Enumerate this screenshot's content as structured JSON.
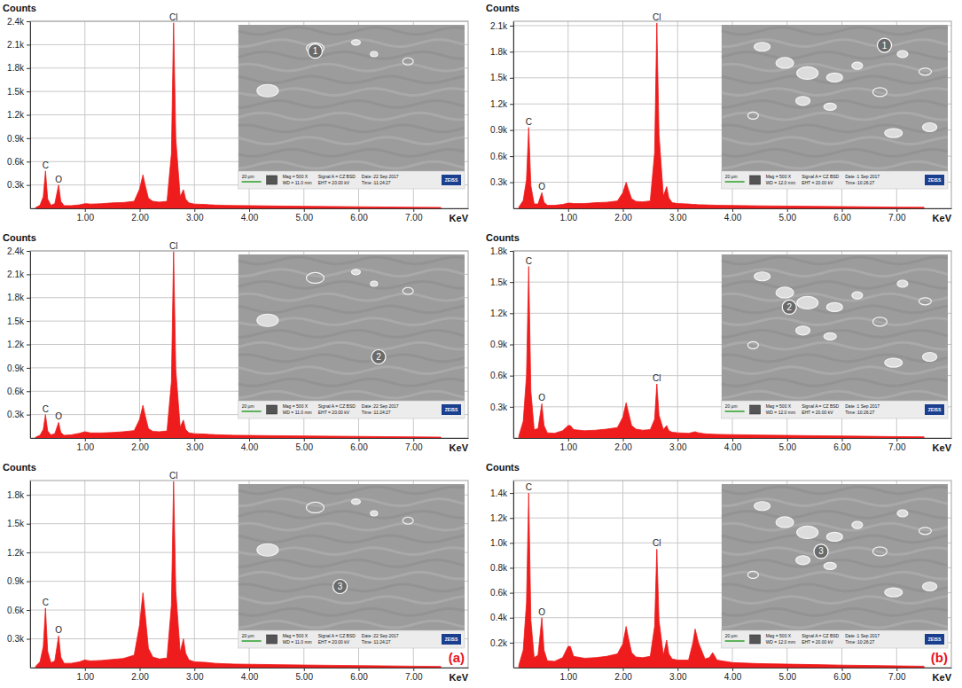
{
  "chart_data": [
    {
      "type": "area",
      "y_label": "Counts",
      "x_label": "KeV",
      "color": "#ee1c1c",
      "grid": true,
      "xlim": [
        0,
        8
      ],
      "xticks": [
        {
          "value": 1,
          "label": "1.00"
        },
        {
          "value": 2,
          "label": "2.00"
        },
        {
          "value": 3,
          "label": "3.00"
        },
        {
          "value": 4,
          "label": "4.00"
        },
        {
          "value": 5,
          "label": "5.00"
        },
        {
          "value": 6,
          "label": "6.00"
        },
        {
          "value": 7,
          "label": "7.00"
        }
      ],
      "ylim": [
        0,
        2400
      ],
      "yticks": [
        {
          "value": 300,
          "label": "0.3k"
        },
        {
          "value": 600,
          "label": "0.6k"
        },
        {
          "value": 900,
          "label": "0.9k"
        },
        {
          "value": 1200,
          "label": "1.2k"
        },
        {
          "value": 1500,
          "label": "1.5k"
        },
        {
          "value": 1800,
          "label": "1.8k"
        },
        {
          "value": 2100,
          "label": "2.1k"
        },
        {
          "value": 2400,
          "label": "2.4k"
        }
      ],
      "x": [
        0.1,
        0.18,
        0.24,
        0.28,
        0.32,
        0.38,
        0.45,
        0.52,
        0.56,
        0.62,
        0.75,
        0.9,
        1.0,
        1.04,
        1.1,
        1.3,
        1.5,
        1.7,
        1.9,
        2.0,
        2.06,
        2.1,
        2.16,
        2.24,
        2.36,
        2.5,
        2.58,
        2.62,
        2.66,
        2.74,
        2.8,
        2.84,
        2.9,
        3.0,
        3.2,
        3.28,
        3.32,
        3.38,
        3.5,
        3.58,
        3.64,
        3.72,
        4.0,
        4.5,
        5.0,
        5.5,
        6.0,
        6.5,
        7.0,
        7.5
      ],
      "values": [
        10,
        40,
        150,
        480,
        120,
        40,
        60,
        300,
        90,
        35,
        35,
        45,
        60,
        60,
        55,
        60,
        70,
        75,
        90,
        250,
        430,
        300,
        130,
        90,
        80,
        90,
        700,
        2380,
        900,
        150,
        240,
        120,
        70,
        55,
        50,
        45,
        45,
        42,
        40,
        38,
        38,
        36,
        35,
        30,
        27,
        24,
        20,
        17,
        14,
        12
      ],
      "annotations": [
        {
          "text": "C",
          "x": 0.28
        },
        {
          "text": "O",
          "x": 0.52
        },
        {
          "text": "Cl",
          "x": 2.62
        }
      ],
      "inset": {
        "spot": "1",
        "scale_bar": "20 µm",
        "info": [
          [
            "Mag =  500 X",
            "WD = 11.0 mm"
          ],
          [
            "Signal A = CZ BSD",
            "EHT = 20.00 kV"
          ],
          [
            "Date :22 Sep 2017",
            "Time :11:24:27"
          ]
        ],
        "brand": "ZEISS"
      }
    },
    {
      "type": "area",
      "y_label": "Counts",
      "x_label": "KeV",
      "color": "#ee1c1c",
      "grid": true,
      "xlim": [
        0,
        8
      ],
      "xticks": [
        {
          "value": 1,
          "label": "1.00"
        },
        {
          "value": 2,
          "label": "2.00"
        },
        {
          "value": 3,
          "label": "3.00"
        },
        {
          "value": 4,
          "label": "4.00"
        },
        {
          "value": 5,
          "label": "5.00"
        },
        {
          "value": 6,
          "label": "6.00"
        },
        {
          "value": 7,
          "label": "7.00"
        }
      ],
      "ylim": [
        0,
        2400
      ],
      "yticks": [
        {
          "value": 300,
          "label": "0.3k"
        },
        {
          "value": 600,
          "label": "0.6k"
        },
        {
          "value": 900,
          "label": "0.9k"
        },
        {
          "value": 1200,
          "label": "1.2k"
        },
        {
          "value": 1500,
          "label": "1.5k"
        },
        {
          "value": 1800,
          "label": "1.8k"
        },
        {
          "value": 2100,
          "label": "2.1k"
        },
        {
          "value": 2400,
          "label": "2.4k"
        }
      ],
      "x": [
        0.1,
        0.18,
        0.24,
        0.28,
        0.32,
        0.38,
        0.45,
        0.52,
        0.56,
        0.62,
        0.75,
        0.9,
        1.0,
        1.04,
        1.1,
        1.3,
        1.5,
        1.7,
        1.9,
        2.0,
        2.06,
        2.1,
        2.16,
        2.24,
        2.36,
        2.5,
        2.58,
        2.62,
        2.66,
        2.74,
        2.8,
        2.84,
        2.9,
        3.0,
        3.2,
        3.28,
        3.32,
        3.38,
        3.5,
        3.58,
        3.64,
        3.72,
        4.0,
        4.5,
        5.0,
        5.5,
        6.0,
        6.5,
        7.0,
        7.5
      ],
      "values": [
        10,
        35,
        110,
        300,
        90,
        40,
        55,
        200,
        70,
        35,
        40,
        60,
        80,
        75,
        65,
        65,
        70,
        80,
        95,
        240,
        420,
        290,
        120,
        85,
        80,
        90,
        720,
        2390,
        880,
        140,
        230,
        110,
        65,
        55,
        50,
        45,
        45,
        42,
        40,
        38,
        37,
        35,
        33,
        29,
        26,
        23,
        20,
        17,
        14,
        11
      ],
      "annotations": [
        {
          "text": "C",
          "x": 0.28
        },
        {
          "text": "O",
          "x": 0.52
        },
        {
          "text": "Cl",
          "x": 2.62
        }
      ],
      "inset": {
        "spot": "2",
        "scale_bar": "20 µm",
        "info": [
          [
            "Mag =  500 X",
            "WD = 11.0 mm"
          ],
          [
            "Signal A = CZ BSD",
            "EHT = 20.00 kV"
          ],
          [
            "Date :22 Sep 2017",
            "Time :11:24:27"
          ]
        ],
        "brand": "ZEISS"
      }
    },
    {
      "type": "area",
      "y_label": "Counts",
      "x_label": "KeV",
      "color": "#ee1c1c",
      "grid": true,
      "panel_label": "(a)",
      "xlim": [
        0,
        8
      ],
      "xticks": [
        {
          "value": 1,
          "label": "1.00"
        },
        {
          "value": 2,
          "label": "2.00"
        },
        {
          "value": 3,
          "label": "3.00"
        },
        {
          "value": 4,
          "label": "4.00"
        },
        {
          "value": 5,
          "label": "5.00"
        },
        {
          "value": 6,
          "label": "6.00"
        },
        {
          "value": 7,
          "label": "7.00"
        }
      ],
      "ylim": [
        0,
        1950
      ],
      "yticks": [
        {
          "value": 300,
          "label": "0.3k"
        },
        {
          "value": 600,
          "label": "0.6k"
        },
        {
          "value": 900,
          "label": "0.9k"
        },
        {
          "value": 1200,
          "label": "1.2k"
        },
        {
          "value": 1500,
          "label": "1.5k"
        },
        {
          "value": 1800,
          "label": "1.8k"
        }
      ],
      "x": [
        0.1,
        0.18,
        0.24,
        0.28,
        0.32,
        0.38,
        0.45,
        0.52,
        0.56,
        0.62,
        0.75,
        0.9,
        1.0,
        1.04,
        1.1,
        1.3,
        1.5,
        1.7,
        1.9,
        2.0,
        2.06,
        2.1,
        2.16,
        2.24,
        2.36,
        2.5,
        2.58,
        2.62,
        2.66,
        2.74,
        2.8,
        2.84,
        2.9,
        3.0,
        3.2,
        3.28,
        3.32,
        3.38,
        3.5,
        3.58,
        3.64,
        3.72,
        4.0,
        4.5,
        5.0,
        5.5,
        6.0,
        6.5,
        7.0,
        7.5
      ],
      "values": [
        15,
        60,
        220,
        620,
        170,
        50,
        70,
        330,
        110,
        45,
        45,
        60,
        80,
        75,
        70,
        75,
        85,
        95,
        130,
        450,
        780,
        560,
        200,
        110,
        90,
        100,
        650,
        1940,
        800,
        160,
        300,
        150,
        80,
        60,
        55,
        50,
        48,
        45,
        42,
        40,
        39,
        37,
        35,
        31,
        27,
        24,
        21,
        18,
        15,
        12
      ],
      "annotations": [
        {
          "text": "C",
          "x": 0.28
        },
        {
          "text": "O",
          "x": 0.52
        },
        {
          "text": "Cl",
          "x": 2.62
        }
      ],
      "inset": {
        "spot": "3",
        "scale_bar": "20 µm",
        "info": [
          [
            "Mag =  500 X",
            "WD = 11.0 mm"
          ],
          [
            "Signal A = CZ BSD",
            "EHT = 20.00 kV"
          ],
          [
            "Date :22 Sep 2017",
            "Time :11:24:27"
          ]
        ],
        "brand": "ZEISS"
      }
    },
    {
      "type": "area",
      "y_label": "Counts",
      "x_label": "KeV",
      "color": "#ee1c1c",
      "grid": true,
      "xlim": [
        0,
        8
      ],
      "xticks": [
        {
          "value": 1,
          "label": "1.00"
        },
        {
          "value": 2,
          "label": "2.00"
        },
        {
          "value": 3,
          "label": "3.00"
        },
        {
          "value": 4,
          "label": "4.00"
        },
        {
          "value": 5,
          "label": "5.00"
        },
        {
          "value": 6,
          "label": "6.00"
        },
        {
          "value": 7,
          "label": "7.00"
        }
      ],
      "ylim": [
        0,
        2150
      ],
      "yticks": [
        {
          "value": 300,
          "label": "0.3k"
        },
        {
          "value": 600,
          "label": "0.6k"
        },
        {
          "value": 900,
          "label": "0.9k"
        },
        {
          "value": 1200,
          "label": "1.2k"
        },
        {
          "value": 1500,
          "label": "1.5k"
        },
        {
          "value": 1800,
          "label": "1.8k"
        },
        {
          "value": 2100,
          "label": "2.1k"
        }
      ],
      "x": [
        0.1,
        0.18,
        0.24,
        0.28,
        0.32,
        0.38,
        0.45,
        0.52,
        0.56,
        0.62,
        0.75,
        0.9,
        1.0,
        1.04,
        1.1,
        1.3,
        1.5,
        1.7,
        1.9,
        2.0,
        2.06,
        2.1,
        2.16,
        2.24,
        2.36,
        2.5,
        2.58,
        2.62,
        2.66,
        2.74,
        2.8,
        2.84,
        2.9,
        3.0,
        3.2,
        3.28,
        3.32,
        3.38,
        3.5,
        3.58,
        3.64,
        3.72,
        4.0,
        4.5,
        5.0,
        5.5,
        6.0,
        6.5,
        7.0,
        7.5
      ],
      "values": [
        15,
        90,
        330,
        930,
        260,
        50,
        50,
        180,
        70,
        35,
        35,
        45,
        60,
        60,
        55,
        55,
        65,
        70,
        85,
        180,
        300,
        220,
        110,
        80,
        75,
        85,
        640,
        2130,
        850,
        140,
        250,
        120,
        65,
        55,
        50,
        45,
        45,
        42,
        40,
        38,
        37,
        35,
        33,
        29,
        26,
        23,
        20,
        17,
        14,
        12
      ],
      "annotations": [
        {
          "text": "C",
          "x": 0.28
        },
        {
          "text": "O",
          "x": 0.52
        },
        {
          "text": "Cl",
          "x": 2.62
        }
      ],
      "inset": {
        "spot": "1",
        "scale_bar": "20 µm",
        "info": [
          [
            "Mag =  500 X",
            "WD = 12.0 mm"
          ],
          [
            "Signal A = CZ BSD",
            "EHT = 20.00 kV"
          ],
          [
            "Date :1 Sep 2017",
            "Time :10:26:27"
          ]
        ],
        "brand": "ZEISS"
      }
    },
    {
      "type": "area",
      "y_label": "Counts",
      "x_label": "KeV",
      "color": "#ee1c1c",
      "grid": true,
      "xlim": [
        0,
        8
      ],
      "xticks": [
        {
          "value": 1,
          "label": "1.00"
        },
        {
          "value": 2,
          "label": "2.00"
        },
        {
          "value": 3,
          "label": "3.00"
        },
        {
          "value": 4,
          "label": "4.00"
        },
        {
          "value": 5,
          "label": "5.00"
        },
        {
          "value": 6,
          "label": "6.00"
        },
        {
          "value": 7,
          "label": "7.00"
        }
      ],
      "ylim": [
        0,
        1800
      ],
      "yticks": [
        {
          "value": 300,
          "label": "0.3k"
        },
        {
          "value": 600,
          "label": "0.6k"
        },
        {
          "value": 900,
          "label": "0.9k"
        },
        {
          "value": 1200,
          "label": "1.2k"
        },
        {
          "value": 1500,
          "label": "1.5k"
        },
        {
          "value": 1800,
          "label": "1.8k"
        }
      ],
      "x": [
        0.1,
        0.18,
        0.24,
        0.28,
        0.32,
        0.38,
        0.45,
        0.52,
        0.56,
        0.62,
        0.75,
        0.9,
        1.0,
        1.04,
        1.1,
        1.3,
        1.5,
        1.7,
        1.9,
        2.0,
        2.06,
        2.1,
        2.16,
        2.24,
        2.36,
        2.5,
        2.58,
        2.62,
        2.66,
        2.74,
        2.8,
        2.84,
        2.9,
        3.0,
        3.2,
        3.28,
        3.32,
        3.38,
        3.5,
        3.58,
        3.64,
        3.72,
        4.0,
        4.5,
        5.0,
        5.5,
        6.0,
        6.5,
        7.0,
        7.5
      ],
      "values": [
        20,
        160,
        600,
        1650,
        450,
        80,
        90,
        330,
        120,
        50,
        45,
        70,
        120,
        120,
        80,
        70,
        75,
        85,
        100,
        200,
        340,
        250,
        120,
        85,
        75,
        80,
        180,
        520,
        220,
        80,
        120,
        70,
        55,
        50,
        45,
        55,
        60,
        50,
        40,
        38,
        37,
        35,
        32,
        28,
        25,
        22,
        19,
        16,
        13,
        11
      ],
      "annotations": [
        {
          "text": "C",
          "x": 0.28
        },
        {
          "text": "O",
          "x": 0.52
        },
        {
          "text": "Cl",
          "x": 2.62
        }
      ],
      "inset": {
        "spot": "2",
        "scale_bar": "20 µm",
        "info": [
          [
            "Mag =  500 X",
            "WD = 12.0 mm"
          ],
          [
            "Signal A = CZ BSD",
            "EHT = 20.00 kV"
          ],
          [
            "Date :1 Sep 2017",
            "Time :10:26:27"
          ]
        ],
        "brand": "ZEISS"
      }
    },
    {
      "type": "area",
      "y_label": "Counts",
      "x_label": "KeV",
      "color": "#ee1c1c",
      "grid": true,
      "panel_label": "(b)",
      "xlim": [
        0,
        8
      ],
      "xticks": [
        {
          "value": 1,
          "label": "1.00"
        },
        {
          "value": 2,
          "label": "2.00"
        },
        {
          "value": 3,
          "label": "3.00"
        },
        {
          "value": 4,
          "label": "4.00"
        },
        {
          "value": 5,
          "label": "5.00"
        },
        {
          "value": 6,
          "label": "6.00"
        },
        {
          "value": 7,
          "label": "7.00"
        }
      ],
      "ylim": [
        0,
        1500
      ],
      "yticks": [
        {
          "value": 200,
          "label": "0.2k"
        },
        {
          "value": 400,
          "label": "0.4k"
        },
        {
          "value": 600,
          "label": "0.6k"
        },
        {
          "value": 800,
          "label": "0.8k"
        },
        {
          "value": 1000,
          "label": "1.0k"
        },
        {
          "value": 1200,
          "label": "1.2k"
        },
        {
          "value": 1400,
          "label": "1.4k"
        }
      ],
      "x": [
        0.1,
        0.18,
        0.24,
        0.28,
        0.32,
        0.38,
        0.45,
        0.52,
        0.56,
        0.62,
        0.75,
        0.9,
        1.0,
        1.04,
        1.1,
        1.3,
        1.5,
        1.7,
        1.9,
        2.0,
        2.06,
        2.1,
        2.16,
        2.24,
        2.36,
        2.5,
        2.58,
        2.62,
        2.66,
        2.74,
        2.8,
        2.84,
        2.9,
        3.0,
        3.2,
        3.28,
        3.32,
        3.38,
        3.5,
        3.58,
        3.64,
        3.72,
        4.0,
        4.5,
        5.0,
        5.5,
        6.0,
        6.5,
        7.0,
        7.5
      ],
      "values": [
        20,
        140,
        520,
        1400,
        380,
        80,
        100,
        400,
        140,
        55,
        50,
        80,
        170,
        170,
        90,
        75,
        80,
        90,
        110,
        190,
        330,
        240,
        120,
        85,
        80,
        90,
        330,
        950,
        380,
        100,
        220,
        110,
        70,
        60,
        60,
        200,
        310,
        200,
        70,
        80,
        120,
        60,
        40,
        32,
        28,
        24,
        20,
        17,
        14,
        11
      ],
      "annotations": [
        {
          "text": "C",
          "x": 0.28
        },
        {
          "text": "O",
          "x": 0.52
        },
        {
          "text": "Cl",
          "x": 2.62
        }
      ],
      "inset": {
        "spot": "3",
        "scale_bar": "20 µm",
        "info": [
          [
            "Mag =  500 X",
            "WD = 12.0 mm"
          ],
          [
            "Signal A = CZ BSD",
            "EHT = 20.00 kV"
          ],
          [
            "Date :1 Sep 2017",
            "Time :10:26:27"
          ]
        ],
        "brand": "ZEISS"
      }
    }
  ]
}
